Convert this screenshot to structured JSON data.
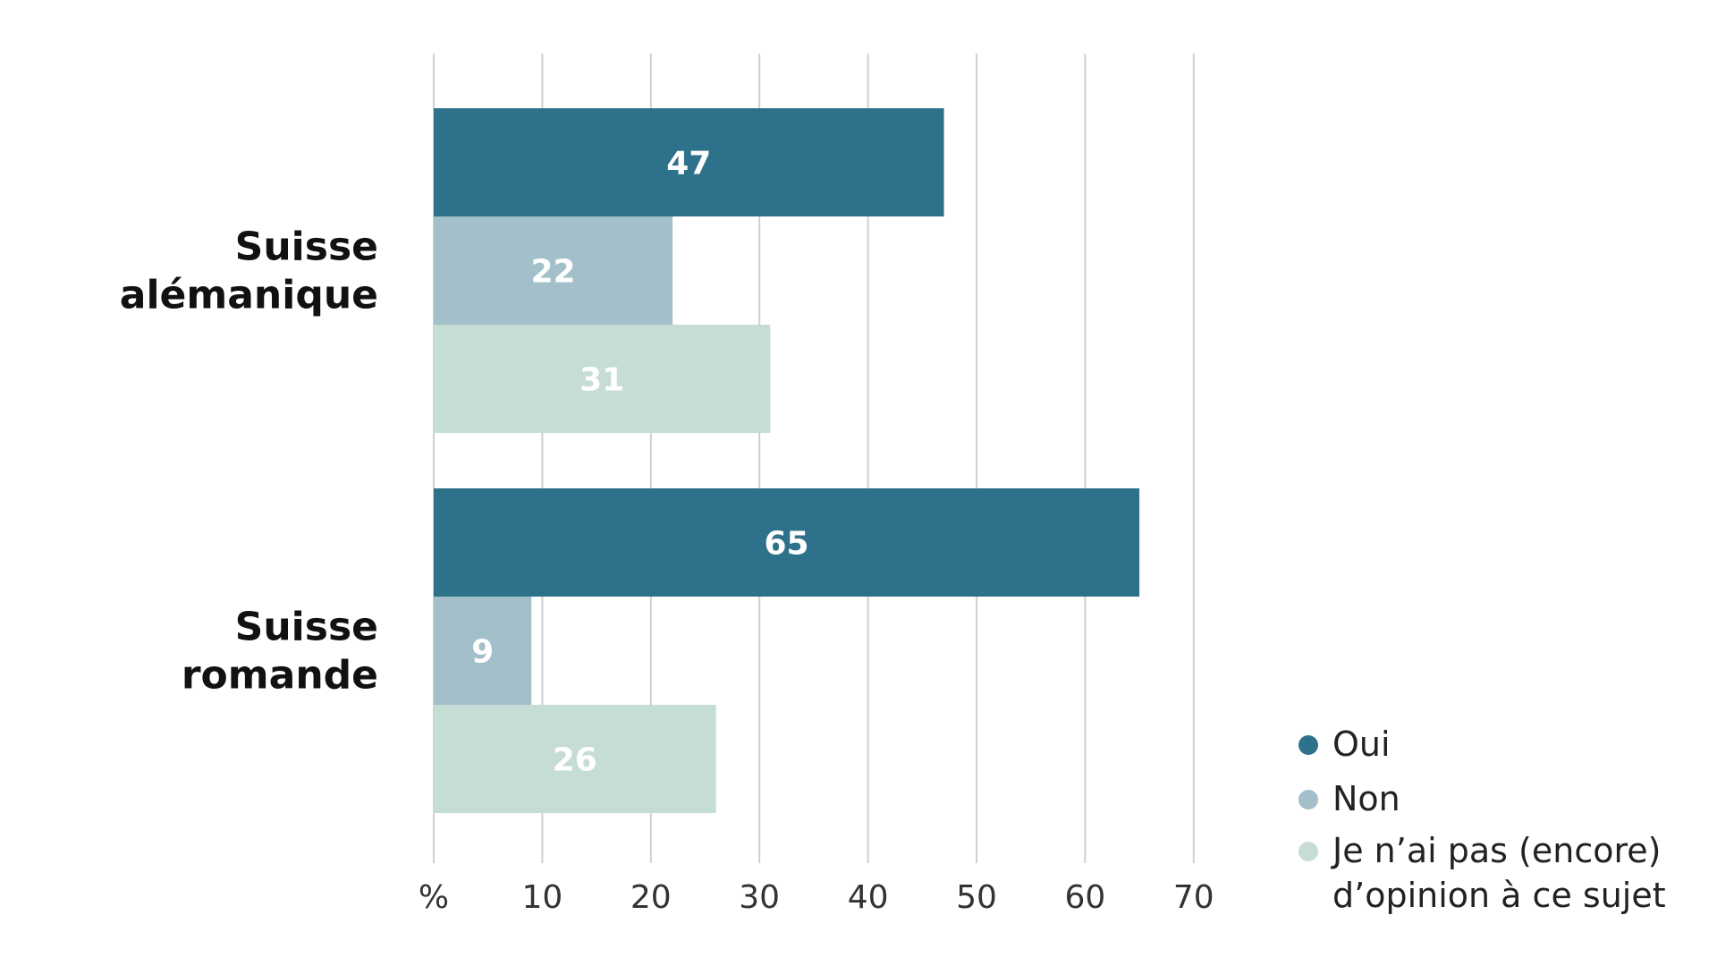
{
  "chart_data": {
    "type": "bar",
    "orientation": "horizontal",
    "categories": [
      "Suisse alémanique",
      "Suisse romande"
    ],
    "category_lines": [
      [
        "Suisse",
        "alémanique"
      ],
      [
        "Suisse",
        "romande"
      ]
    ],
    "series": [
      {
        "name": "Oui",
        "values": [
          47,
          65
        ],
        "color": "#2e718a"
      },
      {
        "name": "Non",
        "values": [
          22,
          9
        ],
        "color": "#a3bfc9"
      },
      {
        "name": "Je n’ai pas (encore) d’opinion à ce sujet",
        "values": [
          31,
          26
        ],
        "color": "#c6ddd6"
      }
    ],
    "legend_lines": [
      [
        "Oui"
      ],
      [
        "Non"
      ],
      [
        "Je n’ai pas (encore)",
        "d’opinion à ce sujet"
      ]
    ],
    "x_ticks": [
      0,
      10,
      20,
      30,
      40,
      50,
      60,
      70
    ],
    "x_tick_labels": [
      "%",
      "10",
      "20",
      "30",
      "40",
      "50",
      "60",
      "70"
    ],
    "xlim": [
      0,
      70
    ],
    "grid": true,
    "legend_position": "bottom-right",
    "data_labels": true
  }
}
